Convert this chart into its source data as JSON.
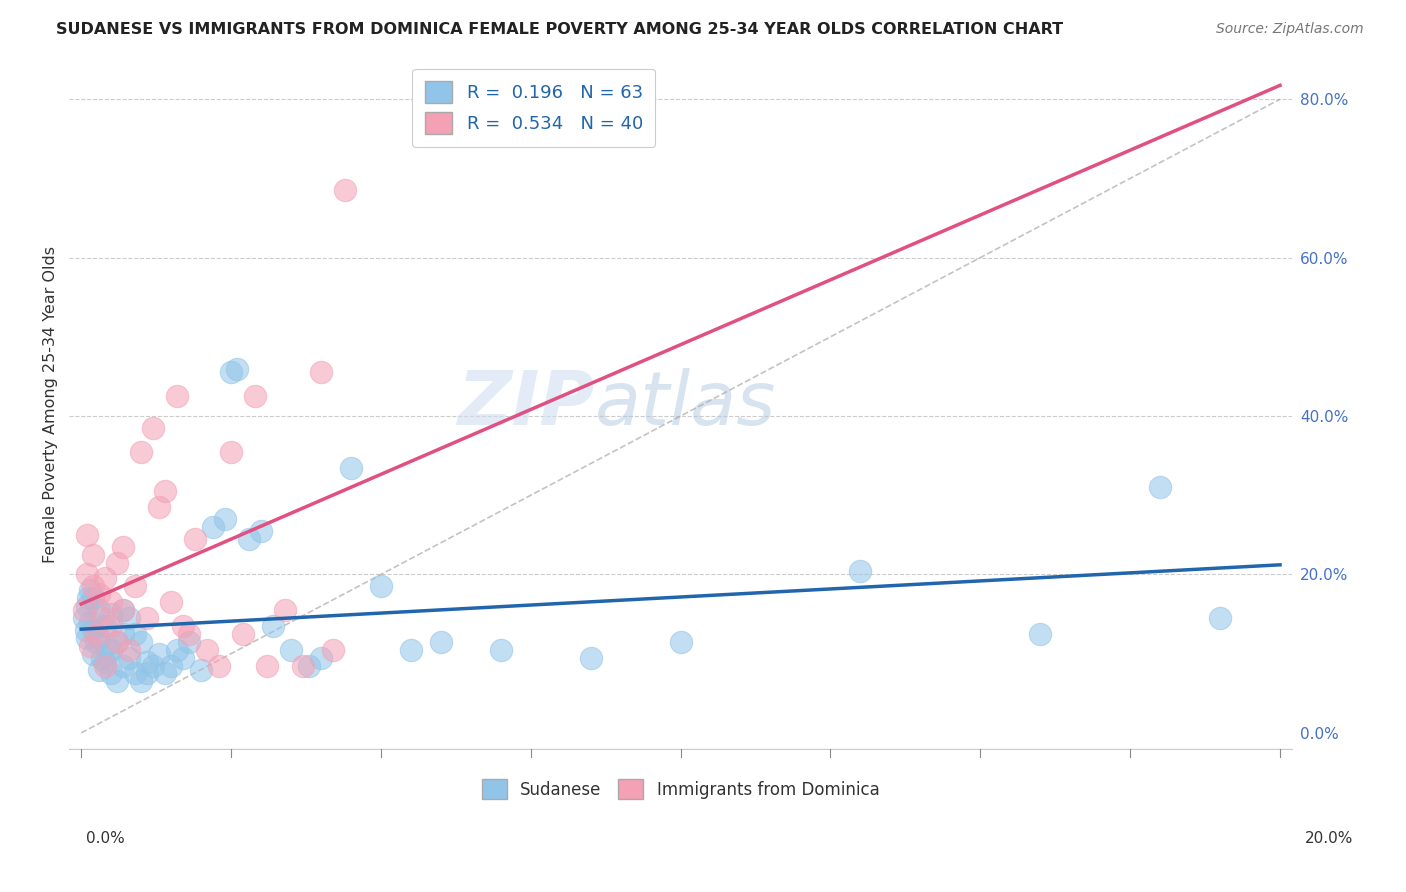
{
  "title": "SUDANESE VS IMMIGRANTS FROM DOMINICA FEMALE POVERTY AMONG 25-34 YEAR OLDS CORRELATION CHART",
  "source": "Source: ZipAtlas.com",
  "ylabel": "Female Poverty Among 25-34 Year Olds",
  "legend_label1": "Sudanese",
  "legend_label2": "Immigrants from Dominica",
  "R1": 0.196,
  "N1": 63,
  "R2": 0.534,
  "N2": 40,
  "color_blue": "#90c4e8",
  "color_pink": "#f4a0b5",
  "color_line_blue": "#2166ac",
  "color_line_pink": "#e05080",
  "watermark_zip": "ZIP",
  "watermark_atlas": "atlas",
  "xlim": [
    0.0,
    0.2
  ],
  "ylim": [
    -0.02,
    0.85
  ],
  "blue_scatter_x": [
    0.0005,
    0.0008,
    0.001,
    0.001,
    0.0012,
    0.0015,
    0.0015,
    0.002,
    0.002,
    0.002,
    0.0025,
    0.003,
    0.003,
    0.003,
    0.0035,
    0.004,
    0.004,
    0.0045,
    0.005,
    0.005,
    0.005,
    0.006,
    0.006,
    0.007,
    0.007,
    0.007,
    0.008,
    0.008,
    0.009,
    0.009,
    0.01,
    0.01,
    0.011,
    0.011,
    0.012,
    0.013,
    0.014,
    0.015,
    0.016,
    0.017,
    0.018,
    0.02,
    0.022,
    0.024,
    0.025,
    0.026,
    0.028,
    0.03,
    0.032,
    0.035,
    0.038,
    0.04,
    0.045,
    0.05,
    0.055,
    0.06,
    0.07,
    0.085,
    0.1,
    0.13,
    0.16,
    0.18,
    0.19
  ],
  "blue_scatter_y": [
    0.145,
    0.13,
    0.16,
    0.12,
    0.17,
    0.14,
    0.18,
    0.1,
    0.13,
    0.17,
    0.115,
    0.08,
    0.12,
    0.155,
    0.095,
    0.09,
    0.135,
    0.105,
    0.075,
    0.105,
    0.15,
    0.065,
    0.115,
    0.085,
    0.125,
    0.155,
    0.095,
    0.145,
    0.075,
    0.125,
    0.065,
    0.115,
    0.09,
    0.075,
    0.085,
    0.1,
    0.075,
    0.085,
    0.105,
    0.095,
    0.115,
    0.08,
    0.26,
    0.27,
    0.455,
    0.46,
    0.245,
    0.255,
    0.135,
    0.105,
    0.085,
    0.095,
    0.335,
    0.185,
    0.105,
    0.115,
    0.105,
    0.095,
    0.115,
    0.205,
    0.125,
    0.31,
    0.145
  ],
  "pink_scatter_x": [
    0.0005,
    0.001,
    0.001,
    0.0015,
    0.002,
    0.002,
    0.0025,
    0.003,
    0.0035,
    0.004,
    0.004,
    0.005,
    0.005,
    0.006,
    0.006,
    0.007,
    0.007,
    0.008,
    0.009,
    0.01,
    0.011,
    0.012,
    0.013,
    0.014,
    0.015,
    0.016,
    0.017,
    0.018,
    0.019,
    0.021,
    0.023,
    0.025,
    0.027,
    0.029,
    0.031,
    0.034,
    0.037,
    0.04,
    0.042,
    0.044
  ],
  "pink_scatter_y": [
    0.155,
    0.2,
    0.25,
    0.11,
    0.185,
    0.225,
    0.125,
    0.175,
    0.145,
    0.195,
    0.085,
    0.165,
    0.135,
    0.215,
    0.115,
    0.235,
    0.155,
    0.105,
    0.185,
    0.355,
    0.145,
    0.385,
    0.285,
    0.305,
    0.165,
    0.425,
    0.135,
    0.125,
    0.245,
    0.105,
    0.085,
    0.355,
    0.125,
    0.425,
    0.085,
    0.155,
    0.085,
    0.455,
    0.105,
    0.685
  ]
}
